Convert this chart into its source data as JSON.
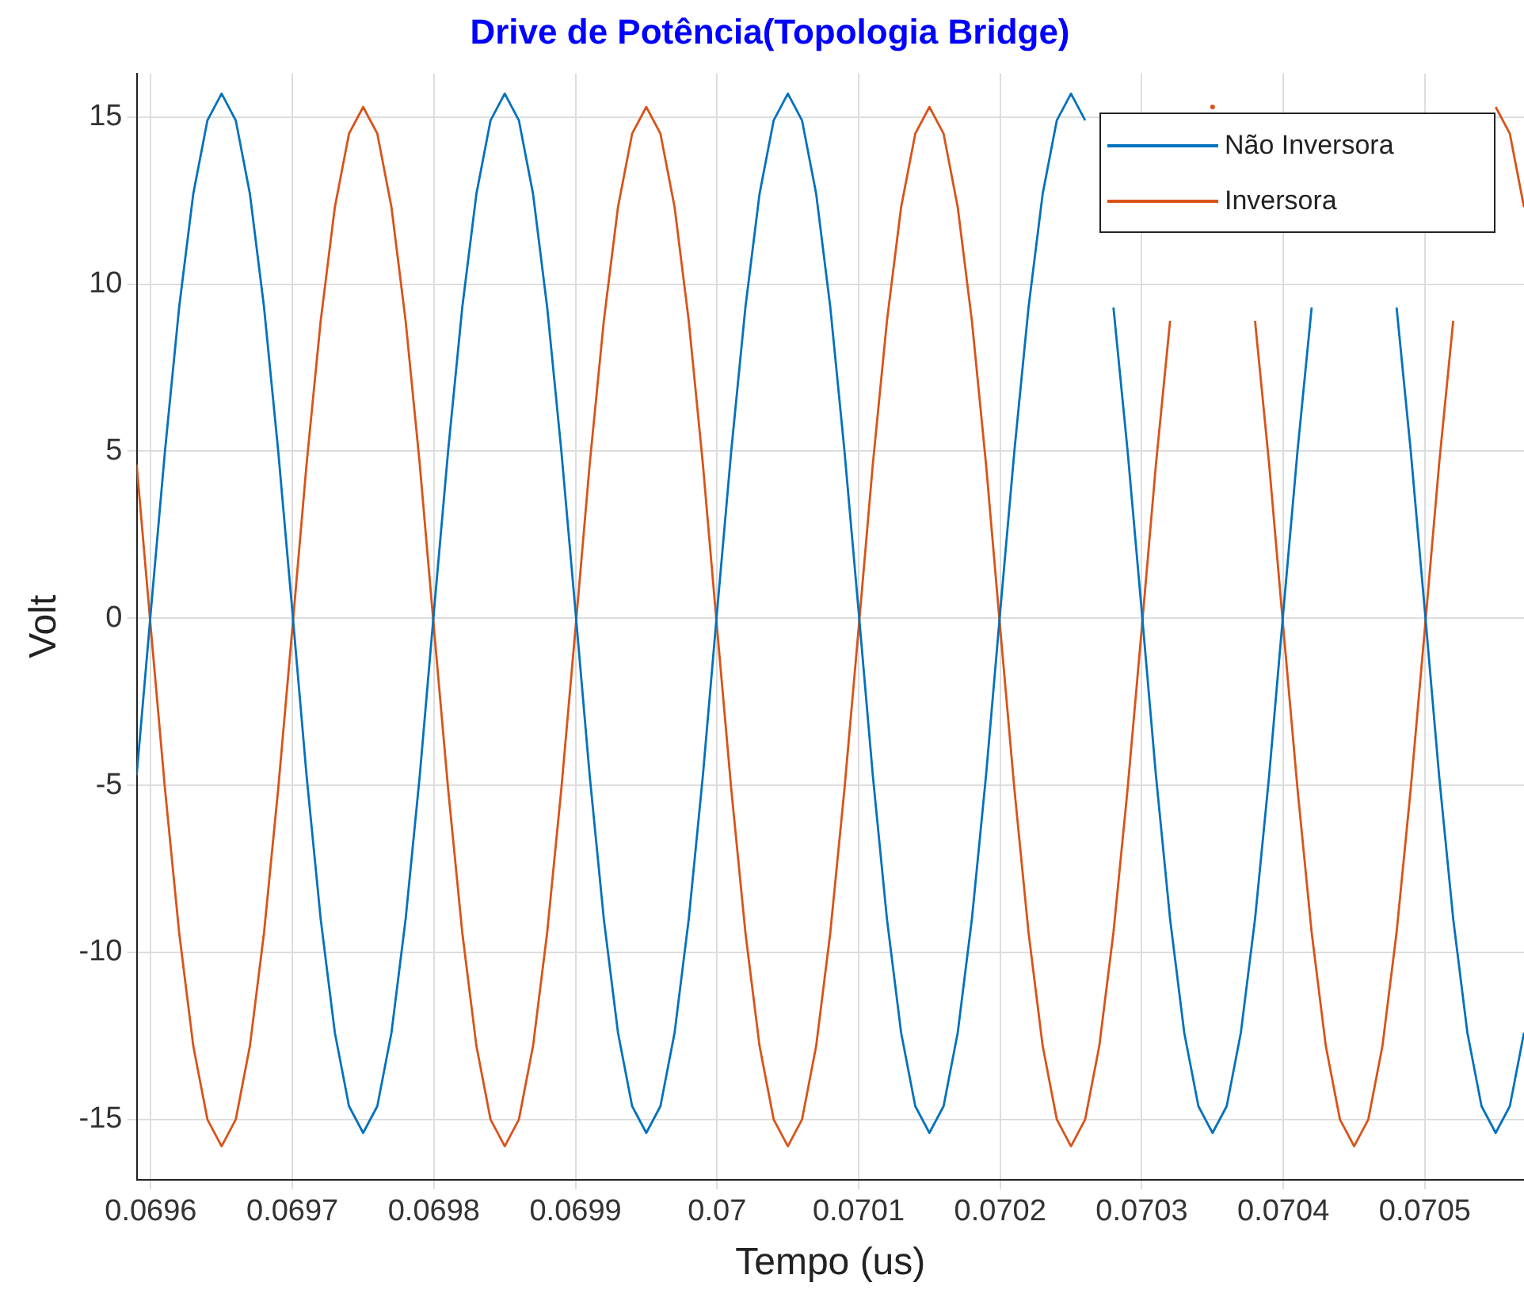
{
  "chart_data": {
    "type": "line",
    "title": "Drive de Potência(Topologia Bridge)",
    "xlabel": "Tempo (us)",
    "ylabel": "Volt",
    "x": [
      0.06959,
      0.0696,
      0.06961,
      0.06962,
      0.06963,
      0.06964,
      0.06965,
      0.06966,
      0.06967,
      0.06968,
      0.06969,
      0.0697,
      0.06971,
      0.06972,
      0.06973,
      0.06974,
      0.06975,
      0.06976,
      0.06977,
      0.06978,
      0.06979,
      0.0698,
      0.06981,
      0.06982,
      0.06983,
      0.06984,
      0.06985,
      0.06986,
      0.06987,
      0.06988,
      0.06989,
      0.0699,
      0.06991,
      0.06992,
      0.06993,
      0.06994,
      0.06995,
      0.06996,
      0.06997,
      0.06998,
      0.06999,
      0.07,
      0.07001,
      0.07002,
      0.07003,
      0.07004,
      0.07005,
      0.07006,
      0.07007,
      0.07008,
      0.07009,
      0.0701,
      0.07011,
      0.07012,
      0.07013,
      0.07014,
      0.07015,
      0.07016,
      0.07017,
      0.07018,
      0.07019,
      0.0702,
      0.07021,
      0.07022,
      0.07023,
      0.07024,
      0.07025,
      0.07026,
      0.07027,
      0.07028,
      0.07029,
      0.0703,
      0.07031,
      0.07032,
      0.07033,
      0.07034,
      0.07035,
      0.07036,
      0.07037,
      0.07038,
      0.07039,
      0.0704,
      0.07041,
      0.07042,
      0.07043,
      0.07044,
      0.07045,
      0.07046,
      0.07047,
      0.07048,
      0.07049,
      0.0705,
      0.07051,
      0.07052,
      0.07053,
      0.07054,
      0.07055,
      0.07056,
      0.07057
    ],
    "series": [
      {
        "name": "Não Inversora",
        "color": "#0072bd",
        "values": [
          -4.7,
          0.2,
          5.0,
          9.3,
          12.7,
          14.9,
          15.7,
          14.9,
          12.7,
          9.3,
          5.0,
          0.2,
          -4.7,
          -9.0,
          -12.4,
          -14.6,
          -15.4,
          -14.6,
          -12.4,
          -9.0,
          -4.7,
          0.2,
          5.0,
          9.3,
          12.7,
          14.9,
          15.7,
          14.9,
          12.7,
          9.3,
          5.0,
          0.2,
          -4.7,
          -9.0,
          -12.4,
          -14.6,
          -15.4,
          -14.6,
          -12.4,
          -9.0,
          -4.7,
          0.2,
          5.0,
          9.3,
          12.7,
          14.9,
          15.7,
          14.9,
          12.7,
          9.3,
          5.0,
          0.2,
          -4.7,
          -9.0,
          -12.4,
          -14.6,
          -15.4,
          -14.6,
          -12.4,
          -9.0,
          -4.7,
          0.2,
          5.0,
          9.3,
          12.7,
          14.9,
          15.7,
          14.9,
          null,
          9.3,
          5.0,
          0.2,
          -4.7,
          -9.0,
          -12.4,
          -14.6,
          -15.4,
          -14.6,
          -12.4,
          -9.0,
          -4.7,
          0.2,
          5.0,
          9.3,
          null,
          null,
          null,
          null,
          null,
          9.3,
          5.0,
          0.2,
          -4.7,
          -9.0,
          -12.4,
          -14.6,
          -15.4,
          -14.6,
          -12.4
        ]
      },
      {
        "name": "Inversora",
        "color": "#d95319",
        "values": [
          4.6,
          -0.3,
          -5.1,
          -9.4,
          -12.8,
          -15.0,
          -15.8,
          -15.0,
          -12.8,
          -9.4,
          -5.1,
          -0.3,
          4.6,
          8.9,
          12.3,
          14.5,
          15.3,
          14.5,
          12.3,
          8.9,
          4.6,
          -0.3,
          -5.1,
          -9.4,
          -12.8,
          -15.0,
          -15.8,
          -15.0,
          -12.8,
          -9.4,
          -5.1,
          -0.3,
          4.6,
          8.9,
          12.3,
          14.5,
          15.3,
          14.5,
          12.3,
          8.9,
          4.6,
          -0.3,
          -5.1,
          -9.4,
          -12.8,
          -15.0,
          -15.8,
          -15.0,
          -12.8,
          -9.4,
          -5.1,
          -0.3,
          4.6,
          8.9,
          12.3,
          14.5,
          15.3,
          14.5,
          12.3,
          8.9,
          4.6,
          -0.3,
          -5.1,
          -9.4,
          -12.8,
          -15.0,
          -15.8,
          -15.0,
          -12.8,
          -9.4,
          -5.1,
          -0.3,
          4.6,
          8.9,
          null,
          null,
          15.3,
          null,
          null,
          8.9,
          4.6,
          -0.3,
          -5.1,
          -9.4,
          -12.8,
          -15.0,
          -15.8,
          -15.0,
          -12.8,
          -9.4,
          -5.1,
          -0.3,
          4.6,
          8.9,
          null,
          null,
          15.3,
          14.5,
          12.3
        ]
      }
    ],
    "xlim": [
      0.06959,
      0.07057
    ],
    "ylim": [
      -16.8,
      16.3
    ],
    "xticks": [
      0.0696,
      0.0697,
      0.0698,
      0.0699,
      0.07,
      0.0701,
      0.0702,
      0.0703,
      0.0704,
      0.0705
    ],
    "yticks": [
      -15,
      -10,
      -5,
      0,
      5,
      10,
      15
    ],
    "grid": true,
    "legend": "top right",
    "marker": "none",
    "line_style": "solid"
  }
}
